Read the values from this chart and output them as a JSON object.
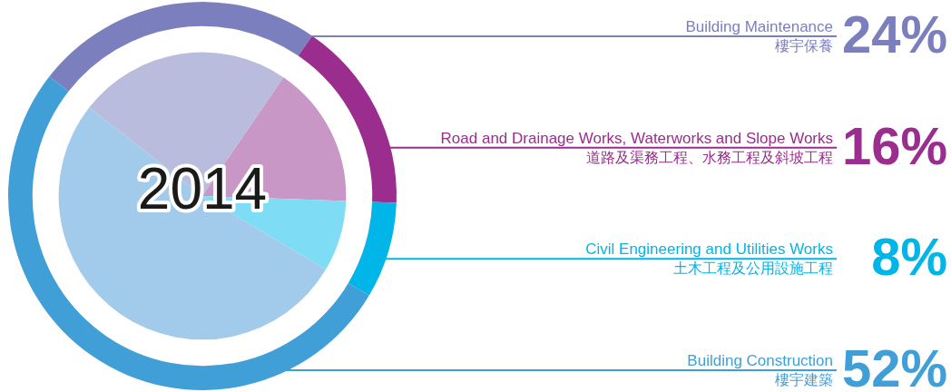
{
  "chart_data": {
    "type": "pie",
    "title": "2014",
    "categories": [
      "Building Maintenance\n樓宇保養",
      "Road and Drainage Works, Waterworks and Slope Works\n道路及渠務工程、水務工程及斜坡工程",
      "Civil Engineering and Utilities Works\n土木工程及公用設施工程",
      "Building Construction\n樓宇建築"
    ],
    "series": [
      {
        "type": "donut",
        "colors": [
          "#7b7fbe",
          "#9b2d8e",
          "#00b5e8",
          "#419fd8"
        ],
        "values": [
          24,
          16,
          8,
          52
        ],
        "value_labels": [
          "24%",
          "16%",
          "8%",
          "52%"
        ]
      },
      {
        "type": "pie",
        "colors": [
          "#b9bcdc",
          "#c997c6",
          "#7fdcf5",
          "#a2cbeb"
        ],
        "values": [
          24,
          16,
          8,
          52
        ]
      }
    ],
    "legend": false
  }
}
